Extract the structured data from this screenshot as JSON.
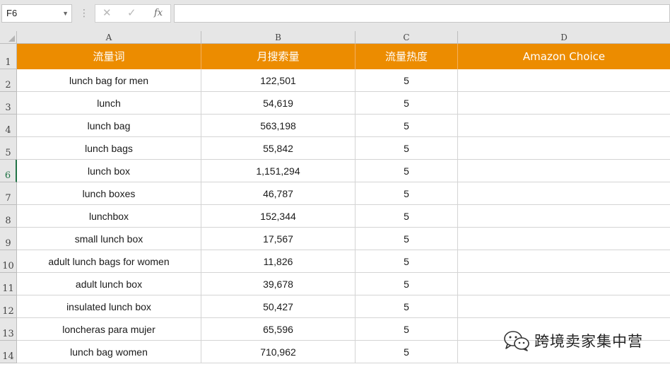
{
  "namebox": {
    "value": "F6"
  },
  "formula_bar": {
    "fx_label": "fx",
    "value": ""
  },
  "columns": [
    "A",
    "B",
    "C",
    "D"
  ],
  "header_row": {
    "row_number": "1",
    "cells": [
      "流量词",
      "月搜索量",
      "流量热度",
      "Amazon Choice"
    ]
  },
  "rows": [
    {
      "n": "2",
      "keyword": "lunch bag for men",
      "volume": "122,501",
      "heat": "5",
      "choice": ""
    },
    {
      "n": "3",
      "keyword": "lunch",
      "volume": "54,619",
      "heat": "5",
      "choice": ""
    },
    {
      "n": "4",
      "keyword": "lunch bag",
      "volume": "563,198",
      "heat": "5",
      "choice": ""
    },
    {
      "n": "5",
      "keyword": "lunch bags",
      "volume": "55,842",
      "heat": "5",
      "choice": ""
    },
    {
      "n": "6",
      "keyword": "lunch box",
      "volume": "1,151,294",
      "heat": "5",
      "choice": ""
    },
    {
      "n": "7",
      "keyword": "lunch boxes",
      "volume": "46,787",
      "heat": "5",
      "choice": ""
    },
    {
      "n": "8",
      "keyword": "lunchbox",
      "volume": "152,344",
      "heat": "5",
      "choice": ""
    },
    {
      "n": "9",
      "keyword": "small lunch box",
      "volume": "17,567",
      "heat": "5",
      "choice": ""
    },
    {
      "n": "10",
      "keyword": "adult lunch bags for women",
      "volume": "11,826",
      "heat": "5",
      "choice": ""
    },
    {
      "n": "11",
      "keyword": "adult lunch box",
      "volume": "39,678",
      "heat": "5",
      "choice": ""
    },
    {
      "n": "12",
      "keyword": "insulated lunch box",
      "volume": "50,427",
      "heat": "5",
      "choice": ""
    },
    {
      "n": "13",
      "keyword": "loncheras para mujer",
      "volume": "65,596",
      "heat": "5",
      "choice": ""
    },
    {
      "n": "14",
      "keyword": "lunch bag women",
      "volume": "710,962",
      "heat": "5",
      "choice": ""
    }
  ],
  "watermark": {
    "text": "跨境卖家集中营",
    "icon": "wechat-icon"
  },
  "colors": {
    "header_fill": "#ec8c00",
    "header_text": "#ffffff",
    "active_row": "#217346"
  }
}
